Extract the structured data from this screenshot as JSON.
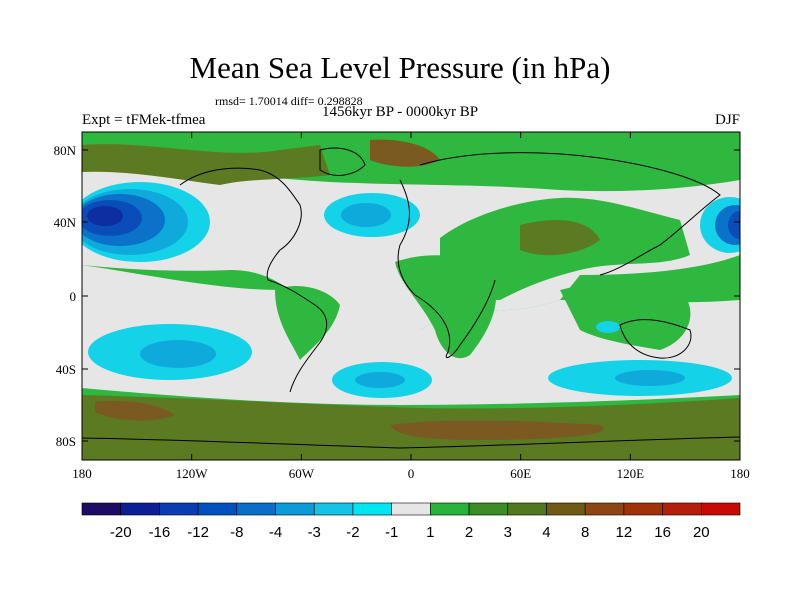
{
  "header": {
    "title": "Mean Sea Level Pressure (in hPa)",
    "stats": "rmsd= 1.70014 diff= 0.298828",
    "experiment": "Expt = tFMek-tfmea",
    "period": "1456kyr BP - 0000kyr BP",
    "season": "DJF"
  },
  "axes": {
    "x_ticks": [
      "180",
      "120W",
      "60W",
      "0",
      "60E",
      "120E",
      "180"
    ],
    "y_ticks": [
      "80N",
      "40N",
      "0",
      "40S",
      "80S"
    ]
  },
  "colorbar": {
    "colors": [
      "#1e0c64",
      "#0c1e96",
      "#0a3cb4",
      "#0050c0",
      "#0a6ec8",
      "#0a9bd8",
      "#14c3e6",
      "#00e6f0",
      "#e6e6e6",
      "#28b43c",
      "#3c8c28",
      "#50781e",
      "#6e5a14",
      "#8c4614",
      "#a0320a",
      "#b41e0a",
      "#c80a05"
    ],
    "labels": [
      "-20",
      "-16",
      "-12",
      "-8",
      "-4",
      "-3",
      "-2",
      "-1",
      "1",
      "2",
      "3",
      "4",
      "8",
      "12",
      "16",
      "20"
    ]
  },
  "palette": {
    "green": "#2fb83f",
    "dark_green": "#3f8f2a",
    "olive": "#5b7a22",
    "brown": "#7a5a20",
    "grey": "#e6e6e6",
    "cyan": "#14d2e8",
    "light_blue": "#0faadc",
    "mid_blue": "#0a72c8",
    "blue": "#0a4cb8",
    "dark_blue": "#0c2ea0",
    "coast": "#000000"
  }
}
